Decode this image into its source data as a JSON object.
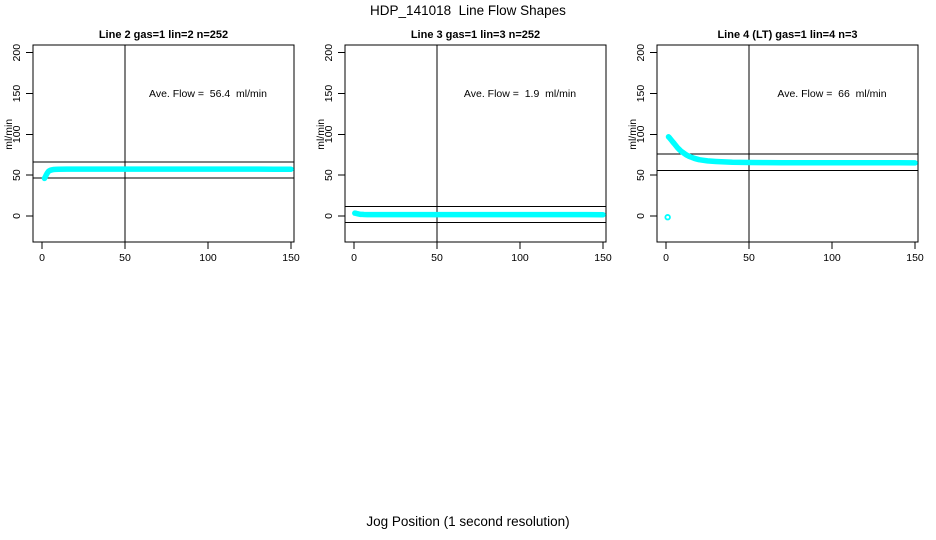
{
  "figure": {
    "title": "HDP_141018  Line Flow Shapes",
    "xlabel": "Jog Position (1 second resolution)",
    "background": "#ffffff",
    "line_color": "#000000"
  },
  "chart_data": {
    "type": "scatter",
    "title": "HDP_141018  Line Flow Shapes",
    "xlabel": "Jog Position (1 second resolution)",
    "ylabel": "ml/min",
    "point_color": "#00ffff",
    "x_ticks": [
      0,
      50,
      100,
      150
    ],
    "y_ticks": [
      0,
      50,
      100,
      150,
      200
    ],
    "xlim": [
      -5,
      152
    ],
    "ylim": [
      -32,
      210
    ],
    "grid": false,
    "legend": "none",
    "panels": [
      {
        "title": "Line 2 gas=1 lin=2 n=252",
        "annotation": "Ave. Flow =  56.4  ml/min",
        "ave_flow": 56.4,
        "n": 252,
        "vline_x": 50,
        "ref_lines_y": [
          66.4,
          46.4
        ],
        "series": [
          [
            1.5,
            46
          ],
          [
            2,
            48
          ],
          [
            2.5,
            50
          ],
          [
            3,
            52
          ],
          [
            3.5,
            53.5
          ],
          [
            4,
            54.8
          ],
          [
            5,
            56
          ],
          [
            6,
            56.6
          ],
          [
            7,
            57
          ],
          [
            8,
            57.1
          ],
          [
            10,
            57.3
          ],
          [
            15,
            57.4
          ],
          [
            20,
            57.4
          ],
          [
            30,
            57.4
          ],
          [
            40,
            57.4
          ],
          [
            50,
            57.4
          ],
          [
            60,
            57.4
          ],
          [
            70,
            57.4
          ],
          [
            80,
            57.4
          ],
          [
            90,
            57.4
          ],
          [
            100,
            57.4
          ],
          [
            110,
            57.4
          ],
          [
            120,
            57.4
          ],
          [
            130,
            57.4
          ],
          [
            140,
            57.3
          ],
          [
            150,
            57.3
          ]
        ],
        "outliers": []
      },
      {
        "title": "Line 3 gas=1 lin=3 n=252",
        "annotation": "Ave. Flow =  1.9  ml/min",
        "ave_flow": 1.9,
        "n": 252,
        "vline_x": 50,
        "ref_lines_y": [
          11.9,
          -8.1
        ],
        "series": [
          [
            0.5,
            3.6
          ],
          [
            1,
            3.4
          ],
          [
            1.5,
            3.1
          ],
          [
            2,
            2.8
          ],
          [
            3,
            2.3
          ],
          [
            4,
            2.0
          ],
          [
            5,
            1.9
          ],
          [
            6,
            1.8
          ],
          [
            8,
            1.7
          ],
          [
            10,
            1.7
          ],
          [
            15,
            1.7
          ],
          [
            20,
            1.7
          ],
          [
            30,
            1.7
          ],
          [
            40,
            1.7
          ],
          [
            50,
            1.7
          ],
          [
            60,
            1.7
          ],
          [
            70,
            1.7
          ],
          [
            80,
            1.7
          ],
          [
            90,
            1.7
          ],
          [
            100,
            1.7
          ],
          [
            110,
            1.7
          ],
          [
            120,
            1.7
          ],
          [
            130,
            1.7
          ],
          [
            140,
            1.7
          ],
          [
            150,
            1.6
          ]
        ],
        "outliers": []
      },
      {
        "title": "Line 4 (LT) gas=1 lin=4 n=3",
        "annotation": "Ave. Flow =  66  ml/min",
        "ave_flow": 66,
        "n": 3,
        "vline_x": 50,
        "ref_lines_y": [
          76,
          56
        ],
        "series": [
          [
            1.5,
            97
          ],
          [
            2,
            96
          ],
          [
            3,
            93.5
          ],
          [
            4,
            91
          ],
          [
            5,
            88.5
          ],
          [
            6,
            86
          ],
          [
            7,
            83.5
          ],
          [
            8,
            81.5
          ],
          [
            9,
            79.5
          ],
          [
            10,
            78
          ],
          [
            11,
            76.5
          ],
          [
            12,
            75.2
          ],
          [
            13,
            74
          ],
          [
            14,
            73
          ],
          [
            15,
            72.2
          ],
          [
            16,
            71.4
          ],
          [
            17,
            70.7
          ],
          [
            18,
            70
          ],
          [
            20,
            69
          ],
          [
            22,
            68.3
          ],
          [
            25,
            67.5
          ],
          [
            28,
            67
          ],
          [
            30,
            66.7
          ],
          [
            35,
            66.2
          ],
          [
            40,
            65.8
          ],
          [
            45,
            65.6
          ],
          [
            50,
            65.5
          ],
          [
            60,
            65.4
          ],
          [
            70,
            65.3
          ],
          [
            80,
            65.3
          ],
          [
            90,
            65.3
          ],
          [
            100,
            65.3
          ],
          [
            110,
            65.2
          ],
          [
            120,
            65.2
          ],
          [
            130,
            65.2
          ],
          [
            140,
            65.1
          ],
          [
            150,
            65
          ]
        ],
        "outliers": [
          [
            1,
            -1.5
          ]
        ]
      }
    ]
  }
}
